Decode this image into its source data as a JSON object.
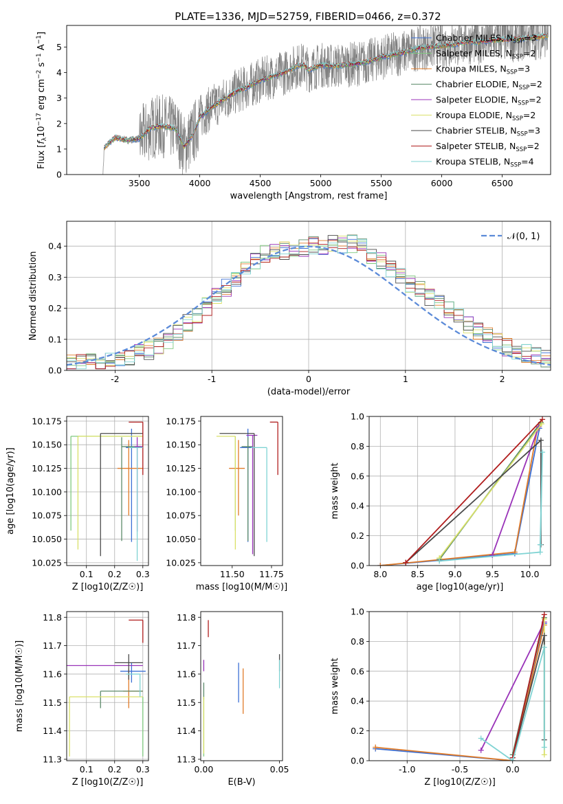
{
  "figure_title": "PLATE=1336, MJD=52759, FIBERID=0466, z=0.372",
  "series": [
    {
      "name": "Chabrier MILES, N_SSP=3",
      "label": "Chabrier MILES, N",
      "sub": "SSP",
      "suffix": "=3",
      "color": "#3b6fd4"
    },
    {
      "name": "Salpeter MILES, N_SSP=2",
      "label": "Salpeter MILES, N",
      "sub": "SSP",
      "suffix": "=2",
      "color": "#7fc97f"
    },
    {
      "name": "Kroupa MILES, N_SSP=3",
      "label": "Kroupa MILES, N",
      "sub": "SSP",
      "suffix": "=3",
      "color": "#e07b28"
    },
    {
      "name": "Chabrier ELODIE, N_SSP=2",
      "label": "Chabrier ELODIE, N",
      "sub": "SSP",
      "suffix": "=2",
      "color": "#5b8a6a"
    },
    {
      "name": "Salpeter ELODIE, N_SSP=2",
      "label": "Salpeter ELODIE, N",
      "sub": "SSP",
      "suffix": "=2",
      "color": "#9932b8"
    },
    {
      "name": "Kroupa ELODIE, N_SSP=2",
      "label": "Kroupa ELODIE, N",
      "sub": "SSP",
      "suffix": "=2",
      "color": "#d9e068"
    },
    {
      "name": "Chabrier STELIB, N_SSP=3",
      "label": "Chabrier STELIB, N",
      "sub": "SSP",
      "suffix": "=3",
      "color": "#4a4a4a"
    },
    {
      "name": "Salpeter STELIB, N_SSP=2",
      "label": "Salpeter STELIB, N",
      "sub": "SSP",
      "suffix": "=2",
      "color": "#b01c1c"
    },
    {
      "name": "Kroupa STELIB, N_SSP=4",
      "label": "Kroupa STELIB, N",
      "sub": "SSP",
      "suffix": "=4",
      "color": "#7fd3d3"
    }
  ],
  "chart_data": [
    {
      "id": "spectrum",
      "type": "line",
      "xlabel": "wavelength [Angstrom, rest frame]",
      "ylabel": "Flux [f_λ 10^-17 erg cm^-2 s^-1 A^-1]",
      "xlim": [
        2900,
        6900
      ],
      "ylim": [
        0,
        5.85
      ],
      "xticks": [
        3500,
        4000,
        4500,
        5000,
        5500,
        6000,
        6500
      ],
      "yticks": [
        0,
        1,
        2,
        3,
        4,
        5
      ],
      "data_color": "#808080",
      "anchors_x": [
        3200,
        3210,
        3300,
        3400,
        3500,
        3600,
        3700,
        3800,
        3870,
        3950,
        4000,
        4100,
        4200,
        4300,
        4400,
        4500,
        4600,
        4700,
        4800,
        4860,
        4900,
        5000,
        5100,
        5200,
        5300,
        5400,
        5500,
        5600,
        5700,
        5800,
        5900,
        6000,
        6100,
        6200,
        6300,
        6400,
        6500,
        6600,
        6700,
        6800,
        6880
      ],
      "anchors_y": [
        0.0,
        1.05,
        1.45,
        1.35,
        1.4,
        1.85,
        1.9,
        1.8,
        1.1,
        1.6,
        2.25,
        2.65,
        2.95,
        3.25,
        3.45,
        3.7,
        3.85,
        4.0,
        4.25,
        4.3,
        4.1,
        4.3,
        4.25,
        4.3,
        4.35,
        4.45,
        4.6,
        4.7,
        4.8,
        4.95,
        5.0,
        5.05,
        5.1,
        5.2,
        5.2,
        5.25,
        5.3,
        5.3,
        5.35,
        5.4,
        5.45
      ],
      "grid": false,
      "legend": "top-right"
    },
    {
      "id": "residual_histogram",
      "type": "line",
      "xlabel": "(data-model)/error",
      "ylabel": "Normed distribution",
      "xlim": [
        -2.5,
        2.5
      ],
      "ylim": [
        0,
        0.48
      ],
      "xticks": [
        -2,
        -1,
        0,
        1,
        2
      ],
      "yticks": [
        0.0,
        0.1,
        0.2,
        0.3,
        0.4
      ],
      "bin_width": 0.1,
      "reference_curve": {
        "label": "𝒩(0, 1)",
        "type": "normal",
        "mean": 0,
        "sigma": 1,
        "color": "#5b8ad8",
        "values": [
          0.018,
          0.054,
          0.13,
          0.242,
          0.352,
          0.399,
          0.352,
          0.242,
          0.13,
          0.054,
          0.018
        ]
      },
      "reference_x": [
        -2.5,
        -2,
        -1.5,
        -1,
        -0.5,
        0,
        0.5,
        1,
        1.5,
        2,
        2.5
      ],
      "hist_x": [
        -2.5,
        -2,
        -1.5,
        -1,
        -0.5,
        0,
        0.5,
        1,
        1.5,
        2,
        2.5
      ],
      "hist_values": [
        0.02,
        0.03,
        0.08,
        0.22,
        0.37,
        0.4,
        0.41,
        0.29,
        0.18,
        0.08,
        0.03
      ],
      "grid": true,
      "legend": "top-right"
    },
    {
      "id": "age_vs_Z",
      "type": "scatter",
      "xlabel": "Z [log10(Z/Z☉)]",
      "ylabel": "age  [log10(age/yr)]",
      "xlim": [
        0.03,
        0.32
      ],
      "ylim": [
        10.022,
        10.18
      ],
      "xticks": [
        0.1,
        0.2,
        0.3
      ],
      "yticks": [
        10.025,
        10.05,
        10.075,
        10.1,
        10.125,
        10.15,
        10.175
      ],
      "points": [
        {
          "s": 0,
          "x": 0.26,
          "y": 10.147,
          "xerr": [
            0.02,
            0.04
          ],
          "yerr": [
            0.1,
            0.02
          ]
        },
        {
          "s": 1,
          "x": 0.045,
          "y": 10.159,
          "xerr": [
            0.0,
            0.255
          ],
          "yerr": [
            0.1,
            0.0
          ]
        },
        {
          "s": 2,
          "x": 0.25,
          "y": 10.125,
          "xerr": [
            0.04,
            0.05
          ],
          "yerr": [
            0.05,
            0.03
          ]
        },
        {
          "s": 3,
          "x": 0.225,
          "y": 10.148,
          "xerr": [
            0.0,
            0.07
          ],
          "yerr": [
            0.1,
            0.01
          ]
        },
        {
          "s": 4,
          "x": 0.28,
          "y": 10.148,
          "xerr": [
            0.01,
            0.02
          ],
          "yerr": [
            0.09,
            0.01
          ]
        },
        {
          "s": 5,
          "x": 0.07,
          "y": 10.159,
          "xerr": [
            0.0,
            0.23
          ],
          "yerr": [
            0.12,
            0.0
          ]
        },
        {
          "s": 6,
          "x": 0.15,
          "y": 10.162,
          "xerr": [
            0.0,
            0.15
          ],
          "yerr": [
            0.13,
            0.0
          ]
        },
        {
          "s": 7,
          "x": 0.3,
          "y": 10.174,
          "xerr": [
            0.05,
            0.0
          ],
          "yerr": [
            0.056,
            0.0
          ]
        },
        {
          "s": 8,
          "x": 0.28,
          "y": 10.147,
          "xerr": [
            0.03,
            0.02
          ],
          "yerr": [
            0.12,
            0.0
          ]
        }
      ],
      "grid": true
    },
    {
      "id": "age_vs_mass",
      "type": "scatter",
      "xlabel": "mass [log10(M/M☉)]",
      "ylabel": "",
      "xlim": [
        11.3,
        11.82
      ],
      "ylim": [
        10.022,
        10.18
      ],
      "xticks": [
        11.5,
        11.75
      ],
      "yticks": [
        10.025,
        10.05,
        10.075,
        10.1,
        10.125,
        10.15,
        10.175
      ],
      "points": [
        {
          "s": 0,
          "x": 11.6,
          "y": 10.147,
          "xerr": [
            0.05,
            0.04
          ],
          "yerr": [
            0.1,
            0.02
          ]
        },
        {
          "s": 1,
          "x": 11.52,
          "y": 10.159,
          "xerr": [
            0.0,
            0.0
          ],
          "yerr": [
            0.1,
            0.0
          ]
        },
        {
          "s": 2,
          "x": 11.54,
          "y": 10.125,
          "xerr": [
            0.06,
            0.04
          ],
          "yerr": [
            0.05,
            0.03
          ]
        },
        {
          "s": 3,
          "x": 11.6,
          "y": 10.148,
          "xerr": [
            0.04,
            0.03
          ],
          "yerr": [
            0.1,
            0.01
          ]
        },
        {
          "s": 4,
          "x": 11.63,
          "y": 10.16,
          "xerr": [
            0.04,
            0.03
          ],
          "yerr": [
            0.126,
            0.0
          ]
        },
        {
          "s": 5,
          "x": 11.52,
          "y": 10.159,
          "xerr": [
            0.12,
            0.0
          ],
          "yerr": [
            0.12,
            0.0
          ]
        },
        {
          "s": 6,
          "x": 11.64,
          "y": 10.162,
          "xerr": [
            0.22,
            0.0
          ],
          "yerr": [
            0.13,
            0.0
          ]
        },
        {
          "s": 7,
          "x": 11.79,
          "y": 10.174,
          "xerr": [
            0.05,
            0.0
          ],
          "yerr": [
            0.056,
            0.0
          ]
        },
        {
          "s": 8,
          "x": 11.72,
          "y": 10.147,
          "xerr": [
            0.1,
            0.0
          ],
          "yerr": [
            0.1,
            0.0
          ]
        }
      ],
      "grid": false
    },
    {
      "id": "massweight_vs_age",
      "type": "line",
      "xlabel": "age  [log10(age/yr)]",
      "ylabel": "mass weight",
      "xlim": [
        7.85,
        10.28
      ],
      "ylim": [
        0,
        1
      ],
      "xticks": [
        8.0,
        8.5,
        9.0,
        9.5,
        10.0
      ],
      "yticks": [
        0.0,
        0.2,
        0.4,
        0.6,
        0.8,
        1.0
      ],
      "lines": [
        {
          "s": 0,
          "x": [
            8.0,
            9.8,
            10.13
          ],
          "y": [
            0.0,
            0.08,
            0.92
          ]
        },
        {
          "s": 1,
          "x": [
            8.79,
            10.15
          ],
          "y": [
            0.04,
            0.96
          ]
        },
        {
          "s": 2,
          "x": [
            8.0,
            9.8,
            10.1
          ],
          "y": [
            0.0,
            0.09,
            0.91
          ]
        },
        {
          "s": 3,
          "x": [
            8.79,
            10.15,
            8.79
          ],
          "y": [
            0.04,
            0.96,
            0.04
          ]
        },
        {
          "s": 4,
          "x": [
            9.5,
            10.12
          ],
          "y": [
            0.07,
            0.93
          ]
        },
        {
          "s": 5,
          "x": [
            8.79,
            10.16,
            8.79
          ],
          "y": [
            0.05,
            0.95,
            0.05
          ]
        },
        {
          "s": 6,
          "x": [
            8.34,
            10.15,
            10.15
          ],
          "y": [
            0.02,
            0.84,
            0.14
          ]
        },
        {
          "s": 7,
          "x": [
            8.34,
            10.17
          ],
          "y": [
            0.02,
            0.98
          ]
        },
        {
          "s": 8,
          "x": [
            8.79,
            10.14,
            10.17,
            10.14
          ],
          "y": [
            0.03,
            0.09,
            0.76,
            0.14
          ]
        }
      ],
      "grid": true
    },
    {
      "id": "mass_vs_Z",
      "type": "scatter",
      "xlabel": "Z [log10(Z/Z☉)]",
      "ylabel": "mass [log10(M/M☉)]",
      "xlim": [
        0.03,
        0.32
      ],
      "ylim": [
        11.295,
        11.82
      ],
      "xticks": [
        0.1,
        0.2,
        0.3
      ],
      "yticks": [
        11.3,
        11.4,
        11.5,
        11.6,
        11.7,
        11.8
      ],
      "points": [
        {
          "s": 0,
          "x": 0.26,
          "y": 11.61,
          "xerr": [
            0.04,
            0.05
          ],
          "yerr": [
            0.04,
            0.03
          ]
        },
        {
          "s": 1,
          "x": 0.3,
          "y": 11.52,
          "xerr": [
            0.0,
            0.0
          ],
          "yerr": [
            0.21,
            0.0
          ]
        },
        {
          "s": 2,
          "x": 0.25,
          "y": 11.54,
          "xerr": [
            0.02,
            0.05
          ],
          "yerr": [
            0.06,
            0.08
          ]
        },
        {
          "s": 3,
          "x": 0.15,
          "y": 11.54,
          "xerr": [
            0.0,
            0.15
          ],
          "yerr": [
            0.06,
            0.0
          ]
        },
        {
          "s": 4,
          "x": 0.03,
          "y": 11.63,
          "xerr": [
            0.0,
            0.27
          ],
          "yerr": [
            0.0,
            0.0
          ]
        },
        {
          "s": 5,
          "x": 0.04,
          "y": 11.52,
          "xerr": [
            0.0,
            0.26
          ],
          "yerr": [
            0.21,
            0.0
          ]
        },
        {
          "s": 6,
          "x": 0.25,
          "y": 11.64,
          "xerr": [
            0.05,
            0.05
          ],
          "yerr": [
            0.06,
            0.03
          ]
        },
        {
          "s": 7,
          "x": 0.3,
          "y": 11.79,
          "xerr": [
            0.05,
            0.0
          ],
          "yerr": [
            0.08,
            0.0
          ]
        },
        {
          "s": 8,
          "x": 0.29,
          "y": 11.6,
          "xerr": [
            0.05,
            0.0
          ],
          "yerr": [
            0.08,
            0.0
          ]
        }
      ],
      "grid": true
    },
    {
      "id": "mass_vs_ebv",
      "type": "scatter",
      "xlabel": "E(B-V)",
      "ylabel": "",
      "xlim": [
        -0.002,
        0.052
      ],
      "ylim": [
        11.295,
        11.82
      ],
      "xticks": [
        0.0,
        0.05
      ],
      "tick_labels": [
        "0.00",
        "0.05"
      ],
      "yticks": [
        11.3,
        11.4,
        11.5,
        11.6,
        11.7,
        11.8
      ],
      "points": [
        {
          "s": 0,
          "x": 0.023,
          "y": 11.57,
          "yerr": [
            0.07,
            0.07
          ]
        },
        {
          "s": 1,
          "x": 0.0,
          "y": 11.52,
          "yerr": [
            0.21,
            0.0
          ]
        },
        {
          "s": 2,
          "x": 0.026,
          "y": 11.54,
          "yerr": [
            0.08,
            0.08
          ]
        },
        {
          "s": 3,
          "x": 0.0,
          "y": 11.54,
          "yerr": [
            0.03,
            0.03
          ]
        },
        {
          "s": 4,
          "x": 0.0,
          "y": 11.63,
          "yerr": [
            0.02,
            0.02
          ]
        },
        {
          "s": 5,
          "x": 0.0,
          "y": 11.52,
          "yerr": [
            0.2,
            0.0
          ]
        },
        {
          "s": 6,
          "x": 0.05,
          "y": 11.64,
          "yerr": [
            0.03,
            0.03
          ]
        },
        {
          "s": 7,
          "x": 0.003,
          "y": 11.79,
          "yerr": [
            0.06,
            0.0
          ]
        },
        {
          "s": 8,
          "x": 0.05,
          "y": 11.6,
          "yerr": [
            0.05,
            0.05
          ]
        }
      ],
      "grid": false
    },
    {
      "id": "massweight_vs_Z",
      "type": "line",
      "xlabel": "Z [log10(Z/Z☉)]",
      "ylabel": "mass weight",
      "xlim": [
        -1.36,
        0.36
      ],
      "ylim": [
        0,
        1
      ],
      "xticks": [
        -1.0,
        -0.5,
        0.0
      ],
      "yticks": [
        0.0,
        0.2,
        0.4,
        0.6,
        0.8,
        1.0
      ],
      "lines": [
        {
          "s": 0,
          "x": [
            -1.3,
            0.0,
            0.3
          ],
          "y": [
            0.08,
            0.0,
            0.92
          ]
        },
        {
          "s": 1,
          "x": [
            0.0,
            0.3
          ],
          "y": [
            0.04,
            0.96
          ]
        },
        {
          "s": 2,
          "x": [
            -1.3,
            0.0,
            0.3
          ],
          "y": [
            0.09,
            0.0,
            0.91
          ]
        },
        {
          "s": 3,
          "x": [
            0.0,
            0.3
          ],
          "y": [
            0.04,
            0.96
          ]
        },
        {
          "s": 4,
          "x": [
            -0.3,
            0.3
          ],
          "y": [
            0.07,
            0.93
          ]
        },
        {
          "s": 5,
          "x": [
            0.3,
            0.3
          ],
          "y": [
            0.04,
            0.95
          ]
        },
        {
          "s": 6,
          "x": [
            0.0,
            0.3,
            0.3
          ],
          "y": [
            0.02,
            0.84,
            0.14
          ]
        },
        {
          "s": 7,
          "x": [
            0.0,
            0.3
          ],
          "y": [
            0.02,
            0.98
          ]
        },
        {
          "s": 8,
          "x": [
            -0.3,
            0.0,
            0.3,
            0.3
          ],
          "y": [
            0.15,
            0.0,
            0.76,
            0.09
          ]
        }
      ],
      "grid": true
    }
  ]
}
